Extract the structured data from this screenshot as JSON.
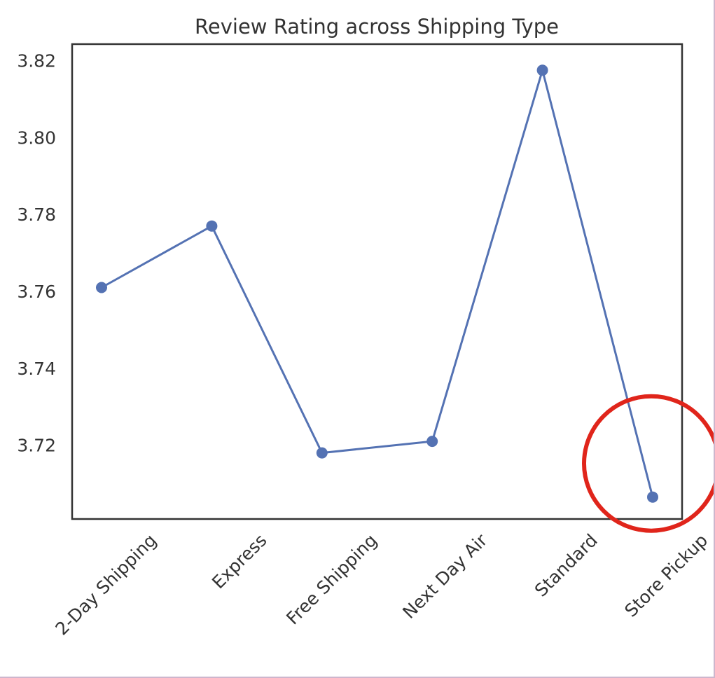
{
  "chart_data": {
    "type": "line",
    "title": "Review Rating across Shipping Type",
    "xlabel": "",
    "ylabel": "",
    "categories": [
      "2-Day Shipping",
      "Express",
      "Free Shipping",
      "Next Day Air",
      "Standard",
      "Store Pickup"
    ],
    "series": [
      {
        "values": [
          3.761,
          3.777,
          3.718,
          3.721,
          3.8175,
          3.7065
        ]
      }
    ],
    "y_ticks": [
      "3.72",
      "3.74",
      "3.76",
      "3.78",
      "3.80",
      "3.82"
    ],
    "ylim": [
      3.7008,
      3.8243
    ],
    "grid": false,
    "legend": "none",
    "line_color": "#5472b3",
    "annotation": {
      "type": "circle",
      "target": "Store Pickup",
      "color": "#e0251b"
    }
  }
}
